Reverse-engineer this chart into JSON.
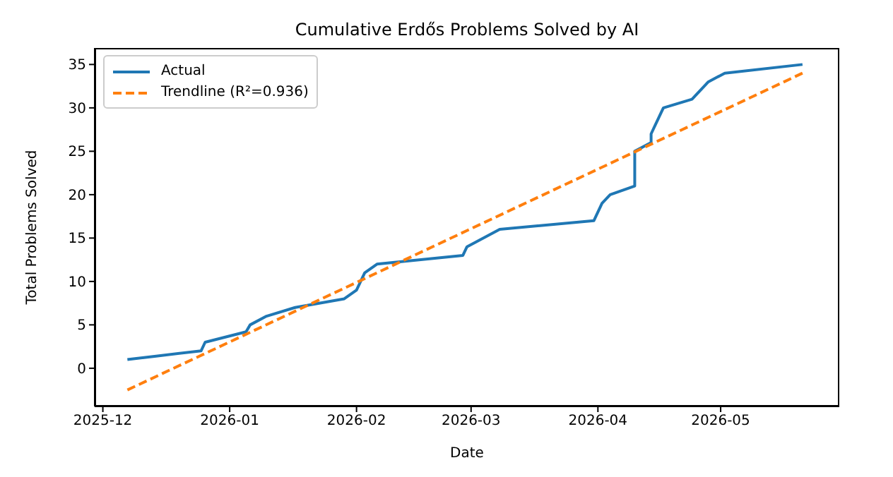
{
  "chart_data": {
    "type": "line",
    "title": "Cumulative Erdős Problems Solved by AI",
    "xlabel": "Date",
    "ylabel": "Total Problems Solved",
    "xlim": [
      "2025-11-29",
      "2026-05-30"
    ],
    "xticks": [
      {
        "value": "2025-12-01",
        "label": "2025-12"
      },
      {
        "value": "2026-01-01",
        "label": "2026-01"
      },
      {
        "value": "2026-02-01",
        "label": "2026-02"
      },
      {
        "value": "2026-03-01",
        "label": "2026-03"
      },
      {
        "value": "2026-04-01",
        "label": "2026-04"
      },
      {
        "value": "2026-05-01",
        "label": "2026-05"
      }
    ],
    "ylim": [
      -4.4,
      36.9
    ],
    "yticks": [
      0,
      5,
      10,
      15,
      20,
      25,
      30,
      35
    ],
    "legend": "top left",
    "marker": "none",
    "series": [
      {
        "name": "Actual",
        "color": "#1f77b4",
        "line_style": "solid",
        "x": [
          "2025-12-07",
          "2025-12-14",
          "2025-12-25",
          "2025-12-26",
          "2026-01-05",
          "2026-01-06",
          "2026-01-10",
          "2026-01-17",
          "2026-01-29",
          "2026-02-01",
          "2026-02-02",
          "2026-02-03",
          "2026-02-06",
          "2026-02-27",
          "2026-02-28",
          "2026-03-08",
          "2026-03-31",
          "2026-04-02",
          "2026-04-04",
          "2026-04-10",
          "2026-04-10",
          "2026-04-14",
          "2026-04-14",
          "2026-04-15",
          "2026-04-16",
          "2026-04-17",
          "2026-04-24",
          "2026-04-28",
          "2026-05-02",
          "2026-05-21"
        ],
        "values": [
          1,
          1.4,
          2,
          3,
          4.2,
          5,
          6,
          7,
          8,
          9,
          10,
          11,
          12,
          13,
          14,
          16,
          17,
          19,
          20,
          21,
          25,
          26,
          27,
          28,
          29,
          30,
          31,
          33,
          34,
          35
        ]
      },
      {
        "name": "Trendline (R²=0.936)",
        "color": "#ff7f0e",
        "line_style": "dashed",
        "x": [
          "2025-12-07",
          "2026-05-21"
        ],
        "values": [
          -2.5,
          34
        ]
      }
    ]
  }
}
